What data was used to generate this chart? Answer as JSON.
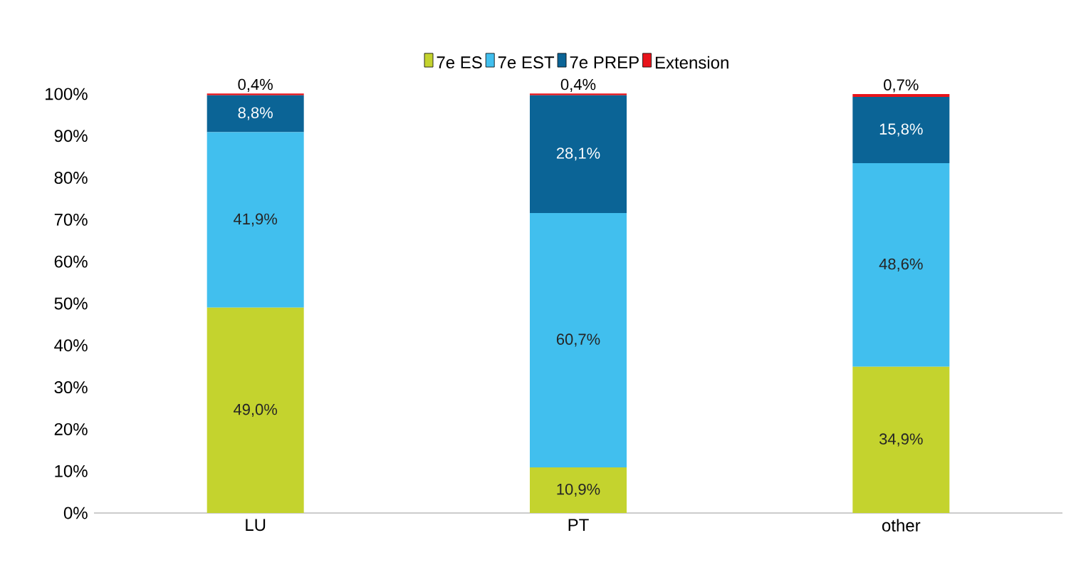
{
  "chart_data": {
    "type": "bar",
    "stacked": true,
    "categories": [
      "LU",
      "PT",
      "other"
    ],
    "series": [
      {
        "name": "7e ES",
        "color": "#c4d32e",
        "values": [
          49.0,
          10.9,
          34.9
        ],
        "value_labels": [
          "49,0%",
          "10,9%",
          "34,9%"
        ]
      },
      {
        "name": "7e EST",
        "color": "#41bfee",
        "values": [
          41.9,
          60.7,
          48.6
        ],
        "value_labels": [
          "41,9%",
          "60,7%",
          "48,6%"
        ]
      },
      {
        "name": "7e PREP",
        "color": "#0b6496",
        "values": [
          8.8,
          28.1,
          15.8
        ],
        "value_labels": [
          "8,8%",
          "28,1%",
          "15,8%"
        ]
      },
      {
        "name": "Extension",
        "color": "#e8141b",
        "values": [
          0.4,
          0.4,
          0.7
        ],
        "value_labels": [
          "0,4%",
          "0,4%",
          "0,7%"
        ]
      }
    ],
    "ylim": [
      0,
      101
    ],
    "yticks": [
      {
        "value": 0,
        "label": "0%"
      },
      {
        "value": 10,
        "label": "10%"
      },
      {
        "value": 20,
        "label": "20%"
      },
      {
        "value": 30,
        "label": "30%"
      },
      {
        "value": 40,
        "label": "40%"
      },
      {
        "value": 50,
        "label": "50%"
      },
      {
        "value": 60,
        "label": "60%"
      },
      {
        "value": 70,
        "label": "70%"
      },
      {
        "value": 80,
        "label": "80%"
      },
      {
        "value": 90,
        "label": "90%"
      },
      {
        "value": 100,
        "label": "100%"
      }
    ],
    "legend": "top",
    "grid": false
  }
}
